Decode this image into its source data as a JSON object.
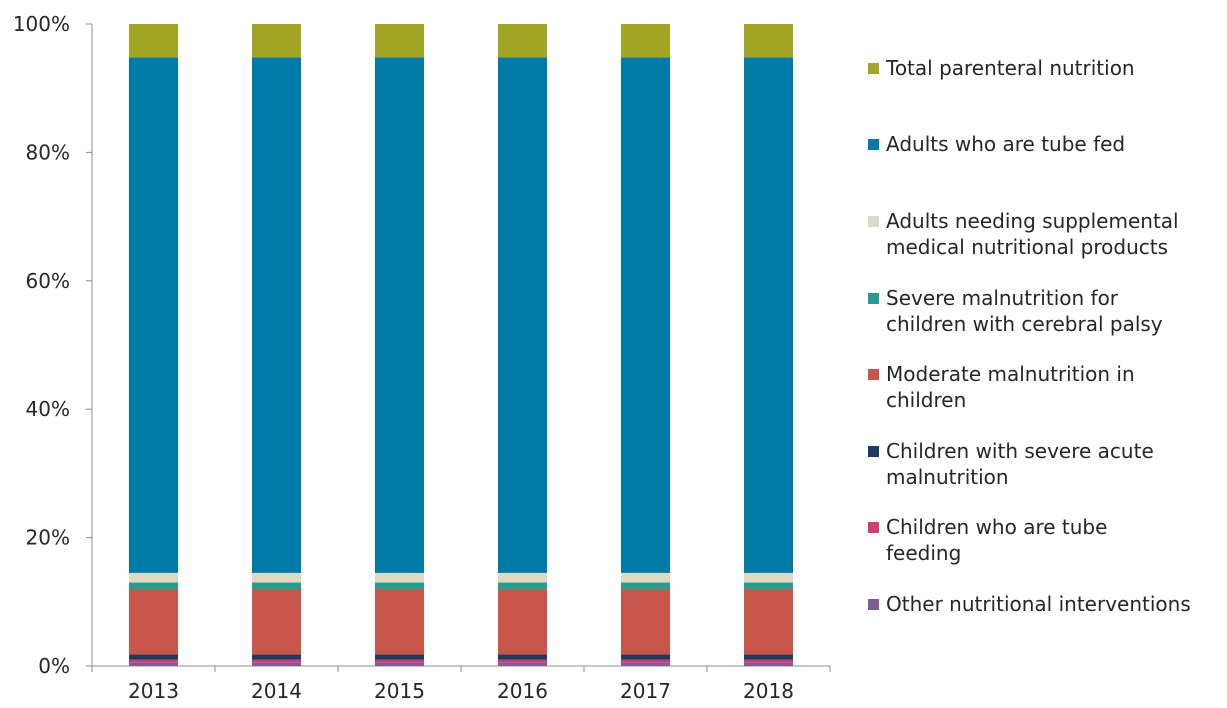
{
  "chart_data": {
    "type": "bar",
    "stacked": true,
    "percent": true,
    "categories": [
      "2013",
      "2014",
      "2015",
      "2016",
      "2017",
      "2018"
    ],
    "ylim": [
      0,
      100
    ],
    "yticks": [
      "0%",
      "20%",
      "40%",
      "60%",
      "80%",
      "100%"
    ],
    "grid": false,
    "legend_position": "right",
    "series": [
      {
        "name": "Other nutritional interventions",
        "color": "#7d5c96",
        "values": [
          0.5,
          0.5,
          0.5,
          0.5,
          0.5,
          0.5
        ]
      },
      {
        "name": "Children who are tube feeding",
        "color": "#cf3d79",
        "values": [
          0.5,
          0.5,
          0.5,
          0.5,
          0.5,
          0.5
        ]
      },
      {
        "name": "Children with severe acute malnutrition",
        "color": "#1f3a5f",
        "values": [
          0.8,
          0.8,
          0.8,
          0.8,
          0.8,
          0.8
        ]
      },
      {
        "name": "Moderate malnutrition in children",
        "color": "#c9564a",
        "values": [
          10.2,
          10.2,
          10.2,
          10.2,
          10.2,
          10.2
        ]
      },
      {
        "name": "Severe malnutrition for children with cerebral palsy",
        "color": "#2a9a8f",
        "values": [
          1.0,
          1.0,
          1.0,
          1.0,
          1.0,
          1.0
        ]
      },
      {
        "name": "Adults needing supplemental medical nutritional products",
        "color": "#dbdbc5",
        "values": [
          1.5,
          1.5,
          1.5,
          1.5,
          1.5,
          1.5
        ]
      },
      {
        "name": "Adults who are tube fed",
        "color": "#007ba7",
        "values": [
          80.3,
          80.3,
          80.3,
          80.3,
          80.3,
          80.3
        ]
      },
      {
        "name": "Total parenteral nutrition",
        "color": "#a2a524",
        "values": [
          5.2,
          5.2,
          5.2,
          5.2,
          5.2,
          5.2
        ]
      }
    ]
  },
  "legend": {
    "items": [
      {
        "label": "Total parenteral nutrition",
        "color": "#a2a524"
      },
      {
        "label": "Adults who are tube fed",
        "color": "#007ba7"
      },
      {
        "label": "Adults needing supplemental\nmedical nutritional products",
        "color": "#dbdbc5"
      },
      {
        "label": "Severe malnutrition for\nchildren with cerebral palsy",
        "color": "#2a9a8f"
      },
      {
        "label": "Moderate malnutrition in\nchildren",
        "color": "#c9564a"
      },
      {
        "label": "Children with severe acute\nmalnutrition",
        "color": "#1f3a5f"
      },
      {
        "label": "Children who are tube\nfeeding",
        "color": "#cf3d79"
      },
      {
        "label": "Other nutritional interventions",
        "color": "#7d5c96"
      }
    ]
  }
}
